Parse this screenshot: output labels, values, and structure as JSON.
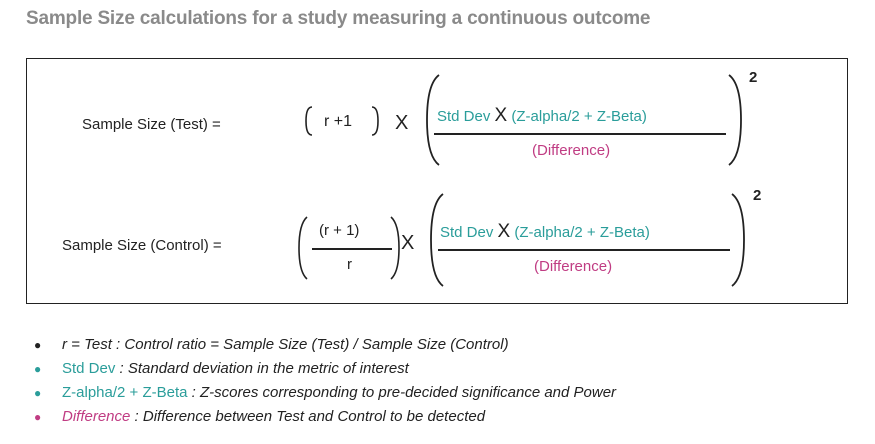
{
  "title": "Sample Size calculations for a study measuring a continuous outcome",
  "formula_test": {
    "label": "Sample Size (Test) =",
    "ratio_term": "r +1",
    "times_1": "X",
    "numerator_sd": "Std Dev",
    "numerator_times": "X",
    "numerator_z": "(Z-alpha/2  + Z-Beta)",
    "denominator": "(Difference)",
    "exponent": "2"
  },
  "formula_control": {
    "label": "Sample Size (Control) =",
    "ratio_numerator": "(r + 1)",
    "ratio_denominator": "r",
    "times_1": "X",
    "numerator_sd": "Std Dev",
    "numerator_times": "X",
    "numerator_z": "(Z-alpha/2  + Z-Beta)",
    "denominator": "(Difference)",
    "exponent": "2"
  },
  "definitions": [
    {
      "term": "",
      "text": "r = Test : Control ratio = Sample Size (Test) / Sample Size (Control)",
      "bullet_color": "#222222"
    },
    {
      "term": "Std Dev",
      "text": " : Standard deviation in the metric of interest",
      "bullet_color": "#2a9d9a"
    },
    {
      "term": "Z-alpha/2 + Z-Beta",
      "text": " : Z-scores corresponding to pre-decided significance and Power",
      "bullet_color": "#2a9d9a"
    },
    {
      "term": "Difference",
      "text": " : Difference between Test and Control to be detected",
      "bullet_color": "#c03c83"
    }
  ],
  "colors": {
    "title": "#8a8a8a",
    "teal_term": "#2a9d9a",
    "magenta_term": "#c03c83",
    "text": "#222222"
  }
}
